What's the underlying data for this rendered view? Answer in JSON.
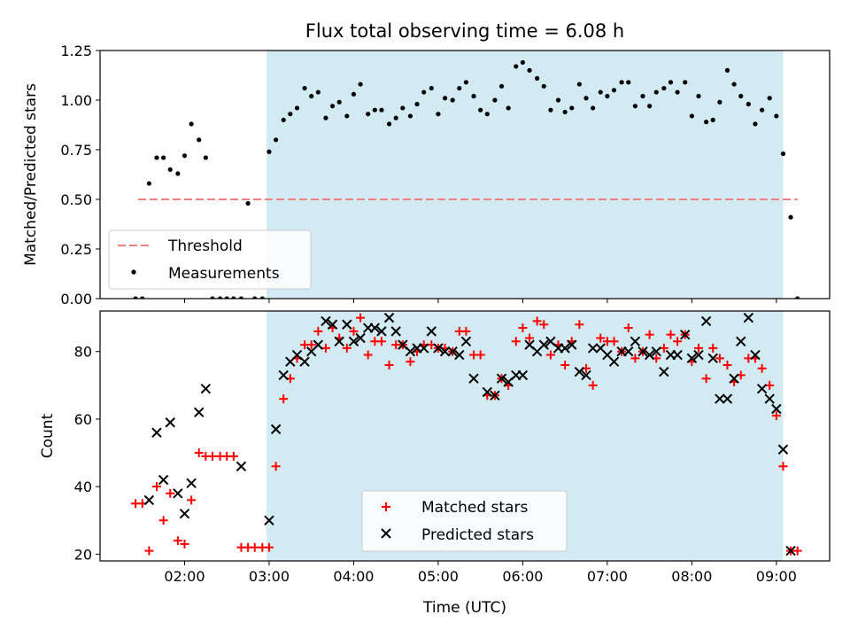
{
  "chart_data": {
    "type": "scatter",
    "title": "Flux total observing time = 6.08 h",
    "xlabel": "Time (UTC)",
    "x_units": "hours UTC",
    "xlim": [
      1.0,
      9.63
    ],
    "x_ticks": [
      2,
      3,
      4,
      5,
      6,
      7,
      8,
      9
    ],
    "x_tick_labels": [
      "02:00",
      "03:00",
      "04:00",
      "05:00",
      "06:00",
      "07:00",
      "08:00",
      "09:00"
    ],
    "grid": false,
    "shaded_region": {
      "x_start": 2.97,
      "x_end": 9.08,
      "color": "#add8e6"
    },
    "panels": [
      {
        "id": "ratio",
        "ylabel": "Matched/Predicted stars",
        "ylim": [
          0,
          1.25
        ],
        "y_ticks": [
          0,
          0.25,
          0.5,
          0.75,
          1.0,
          1.25
        ],
        "y_tick_labels": [
          "0.00",
          "0.25",
          "0.50",
          "0.75",
          "1.00",
          "1.25"
        ],
        "legend_location": "lower left",
        "threshold": {
          "name": "Threshold",
          "value": 0.5,
          "x_range": [
            1.45,
            9.25
          ],
          "color": "#f08080"
        },
        "series": [
          {
            "name": "Measurements",
            "marker": "dot",
            "color": "#000000",
            "x": [
              1.42,
              1.5,
              1.58,
              1.67,
              1.75,
              1.83,
              1.92,
              2.0,
              2.08,
              2.17,
              2.25,
              2.33,
              2.42,
              2.5,
              2.58,
              2.67,
              2.75,
              2.83,
              2.92,
              3.0,
              3.08,
              3.17,
              3.25,
              3.33,
              3.42,
              3.5,
              3.58,
              3.67,
              3.75,
              3.83,
              3.92,
              4.0,
              4.08,
              4.17,
              4.25,
              4.33,
              4.42,
              4.5,
              4.58,
              4.67,
              4.75,
              4.83,
              4.92,
              5.0,
              5.08,
              5.17,
              5.25,
              5.33,
              5.42,
              5.5,
              5.58,
              5.67,
              5.75,
              5.83,
              5.92,
              6.0,
              6.08,
              6.17,
              6.25,
              6.33,
              6.42,
              6.5,
              6.58,
              6.67,
              6.75,
              6.83,
              6.92,
              7.0,
              7.08,
              7.17,
              7.25,
              7.33,
              7.42,
              7.5,
              7.58,
              7.67,
              7.75,
              7.83,
              7.92,
              8.0,
              8.08,
              8.17,
              8.25,
              8.33,
              8.42,
              8.5,
              8.58,
              8.67,
              8.75,
              8.83,
              8.92,
              9.0,
              9.08,
              9.17,
              9.25
            ],
            "y": [
              0.0,
              0.0,
              0.58,
              0.71,
              0.71,
              0.65,
              0.63,
              0.72,
              0.88,
              0.8,
              0.71,
              0.0,
              0.0,
              0.0,
              0.0,
              0.0,
              0.48,
              0.0,
              0.0,
              0.74,
              0.8,
              0.9,
              0.93,
              0.96,
              1.06,
              1.02,
              1.04,
              0.91,
              0.97,
              0.99,
              0.92,
              1.03,
              1.08,
              0.93,
              0.95,
              0.95,
              0.88,
              0.91,
              0.96,
              0.92,
              0.98,
              1.04,
              1.06,
              0.93,
              1.01,
              1.0,
              1.06,
              1.09,
              1.02,
              0.95,
              0.93,
              1.0,
              1.07,
              0.96,
              1.17,
              1.19,
              1.15,
              1.11,
              1.07,
              0.95,
              1.0,
              0.94,
              0.96,
              1.08,
              1.01,
              0.96,
              1.04,
              1.02,
              1.05,
              1.09,
              1.09,
              0.97,
              1.02,
              0.97,
              1.04,
              1.06,
              1.09,
              1.04,
              1.09,
              0.92,
              1.02,
              0.89,
              0.9,
              0.99,
              1.15,
              1.08,
              1.02,
              0.98,
              0.88,
              0.95,
              1.01,
              0.92,
              0.73,
              0.41,
              0.0
            ]
          }
        ]
      },
      {
        "id": "counts",
        "ylabel": "Count",
        "ylim": [
          18,
          92
        ],
        "y_ticks": [
          20,
          40,
          60,
          80
        ],
        "y_tick_labels": [
          "20",
          "40",
          "60",
          "80"
        ],
        "legend_location": "lower center",
        "series": [
          {
            "name": "Matched stars",
            "marker": "plus",
            "color": "#ff0000",
            "x": [
              1.42,
              1.5,
              1.58,
              1.67,
              1.75,
              1.83,
              1.92,
              2.0,
              2.08,
              2.17,
              2.25,
              2.33,
              2.42,
              2.5,
              2.58,
              2.67,
              2.75,
              2.83,
              2.92,
              3.0,
              3.08,
              3.17,
              3.25,
              3.33,
              3.42,
              3.5,
              3.58,
              3.67,
              3.75,
              3.83,
              3.92,
              4.0,
              4.08,
              4.17,
              4.25,
              4.33,
              4.42,
              4.5,
              4.58,
              4.67,
              4.75,
              4.83,
              4.92,
              5.0,
              5.08,
              5.17,
              5.25,
              5.33,
              5.42,
              5.5,
              5.58,
              5.67,
              5.75,
              5.83,
              5.92,
              6.0,
              6.08,
              6.17,
              6.25,
              6.33,
              6.42,
              6.5,
              6.58,
              6.67,
              6.75,
              6.83,
              6.92,
              7.0,
              7.08,
              7.17,
              7.25,
              7.33,
              7.42,
              7.5,
              7.58,
              7.67,
              7.75,
              7.83,
              7.92,
              8.0,
              8.08,
              8.17,
              8.25,
              8.33,
              8.42,
              8.5,
              8.58,
              8.67,
              8.75,
              8.83,
              8.92,
              9.0,
              9.08,
              9.17,
              9.25
            ],
            "y": [
              35,
              35,
              21,
              40,
              30,
              38,
              24,
              23,
              36,
              50,
              49,
              49,
              49,
              49,
              49,
              22,
              22,
              22,
              22,
              22,
              46,
              66,
              72,
              78,
              82,
              82,
              86,
              81,
              87,
              84,
              81,
              86,
              90,
              79,
              83,
              83,
              76,
              82,
              82,
              77,
              80,
              82,
              82,
              81,
              81,
              80,
              86,
              86,
              79,
              79,
              67,
              67,
              72,
              70,
              83,
              87,
              84,
              89,
              88,
              79,
              82,
              76,
              83,
              88,
              75,
              70,
              84,
              83,
              83,
              80,
              87,
              78,
              80,
              85,
              78,
              81,
              85,
              83,
              85,
              77,
              81,
              72,
              81,
              78,
              76,
              71,
              73,
              78,
              78,
              75,
              70,
              61,
              46,
              21,
              21
            ]
          },
          {
            "name": "Predicted stars",
            "marker": "x",
            "color": "#000000",
            "x": [
              1.58,
              1.67,
              1.75,
              1.83,
              1.92,
              2.0,
              2.08,
              2.17,
              2.25,
              2.67,
              3.0,
              3.08,
              3.17,
              3.25,
              3.33,
              3.42,
              3.5,
              3.58,
              3.67,
              3.75,
              3.83,
              3.92,
              4.0,
              4.08,
              4.17,
              4.25,
              4.33,
              4.42,
              4.5,
              4.58,
              4.67,
              4.75,
              4.83,
              4.92,
              5.0,
              5.08,
              5.17,
              5.25,
              5.33,
              5.42,
              5.58,
              5.67,
              5.75,
              5.83,
              5.92,
              6.0,
              6.08,
              6.17,
              6.25,
              6.33,
              6.42,
              6.5,
              6.58,
              6.67,
              6.75,
              6.83,
              6.92,
              7.0,
              7.08,
              7.17,
              7.25,
              7.33,
              7.42,
              7.5,
              7.58,
              7.67,
              7.75,
              7.83,
              7.92,
              8.0,
              8.08,
              8.17,
              8.25,
              8.33,
              8.42,
              8.5,
              8.58,
              8.67,
              8.75,
              8.83,
              8.92,
              9.0,
              9.08,
              9.17
            ],
            "y": [
              36,
              56,
              42,
              59,
              38,
              32,
              41,
              62,
              69,
              46,
              30,
              57,
              73,
              77,
              79,
              77,
              80,
              82,
              89,
              88,
              83,
              88,
              83,
              84,
              87,
              87,
              86,
              90,
              86,
              82,
              80,
              81,
              81,
              86,
              81,
              80,
              80,
              79,
              83,
              72,
              68,
              67,
              72,
              71,
              73,
              73,
              82,
              80,
              82,
              83,
              81,
              81,
              82,
              74,
              73,
              81,
              81,
              79,
              77,
              80,
              80,
              83,
              80,
              79,
              80,
              74,
              79,
              79,
              85,
              78,
              79,
              89,
              78,
              66,
              66,
              72,
              83,
              90,
              79,
              69,
              66,
              63,
              51,
              21
            ]
          }
        ]
      }
    ]
  }
}
